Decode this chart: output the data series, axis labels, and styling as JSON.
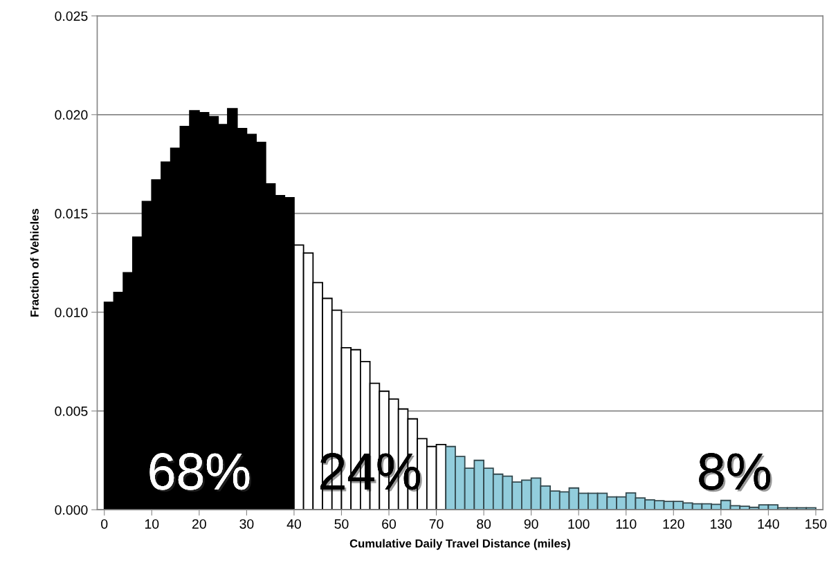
{
  "chart_data": {
    "type": "histogram",
    "xlabel": "Cumulative Daily Travel Distance (miles)",
    "ylabel": "Fraction of Vehicles",
    "bins": [
      0,
      2,
      4,
      6,
      8,
      10,
      12,
      14,
      16,
      18,
      20,
      22,
      24,
      26,
      28,
      30,
      32,
      34,
      36,
      38,
      40,
      42,
      44,
      46,
      48,
      50,
      52,
      54,
      56,
      58,
      60,
      62,
      64,
      66,
      68,
      70,
      72,
      74,
      76,
      78,
      80,
      82,
      84,
      86,
      88,
      90,
      92,
      94,
      96,
      98,
      100,
      102,
      104,
      106,
      108,
      110,
      112,
      114,
      116,
      118,
      120,
      122,
      124,
      126,
      128,
      130,
      132,
      134,
      136,
      138,
      140,
      142,
      144,
      146,
      148,
      150
    ],
    "values": [
      0.0105,
      0.011,
      0.012,
      0.0138,
      0.0156,
      0.0167,
      0.0176,
      0.0183,
      0.0194,
      0.0202,
      0.0201,
      0.0199,
      0.0195,
      0.0203,
      0.0193,
      0.019,
      0.0186,
      0.0165,
      0.0159,
      0.0158,
      0.0134,
      0.013,
      0.0115,
      0.0107,
      0.0101,
      0.0082,
      0.0081,
      0.0075,
      0.0064,
      0.006,
      0.0056,
      0.0051,
      0.0046,
      0.0036,
      0.0032,
      0.0033,
      0.0032,
      0.0027,
      0.0021,
      0.0025,
      0.0021,
      0.0018,
      0.0017,
      0.0014,
      0.0015,
      0.0016,
      0.0012,
      0.00095,
      0.0009,
      0.0011,
      0.00083,
      0.00083,
      0.00083,
      0.00065,
      0.00065,
      0.00085,
      0.0006,
      0.0005,
      0.00046,
      0.00042,
      0.00042,
      0.00034,
      0.0003,
      0.0003,
      0.00027,
      0.00047,
      0.0002,
      0.00018,
      0.00012,
      0.00025,
      0.00025,
      0.0001,
      0.0001,
      0.0001,
      0.0001
    ],
    "colors": [
      "#000000",
      "#000000",
      "#000000",
      "#000000",
      "#000000",
      "#000000",
      "#000000",
      "#000000",
      "#000000",
      "#000000",
      "#000000",
      "#000000",
      "#000000",
      "#000000",
      "#000000",
      "#000000",
      "#000000",
      "#000000",
      "#000000",
      "#000000",
      "#ffffff",
      "#ffffff",
      "#ffffff",
      "#ffffff",
      "#ffffff",
      "#ffffff",
      "#ffffff",
      "#ffffff",
      "#ffffff",
      "#ffffff",
      "#ffffff",
      "#ffffff",
      "#ffffff",
      "#ffffff",
      "#ffffff",
      "#ffffff",
      "#92cddc",
      "#92cddc",
      "#92cddc",
      "#92cddc",
      "#92cddc",
      "#92cddc",
      "#92cddc",
      "#92cddc",
      "#92cddc",
      "#92cddc",
      "#92cddc",
      "#92cddc",
      "#92cddc",
      "#92cddc",
      "#92cddc",
      "#92cddc",
      "#92cddc",
      "#92cddc",
      "#92cddc",
      "#92cddc",
      "#92cddc",
      "#92cddc",
      "#92cddc",
      "#92cddc",
      "#92cddc",
      "#92cddc",
      "#92cddc",
      "#92cddc",
      "#92cddc",
      "#92cddc",
      "#92cddc",
      "#92cddc",
      "#92cddc",
      "#92cddc",
      "#92cddc",
      "#92cddc",
      "#92cddc",
      "#92cddc",
      "#92cddc"
    ],
    "xlim": [
      -1.5,
      151.5
    ],
    "xticks": [
      0,
      10,
      20,
      30,
      40,
      50,
      60,
      70,
      80,
      90,
      100,
      110,
      120,
      130,
      140,
      150
    ],
    "ylim": [
      0,
      0.025
    ],
    "yticks": [
      {
        "value": 0,
        "label": "0.000"
      },
      {
        "value": 0.005,
        "label": "0.005"
      },
      {
        "value": 0.01,
        "label": "0.010"
      },
      {
        "value": 0.015,
        "label": "0.015"
      },
      {
        "value": 0.02,
        "label": "0.020"
      },
      {
        "value": 0.025,
        "label": "0.025"
      }
    ],
    "grid": "y",
    "annotations": [
      "68%",
      "24%",
      "8%"
    ]
  }
}
